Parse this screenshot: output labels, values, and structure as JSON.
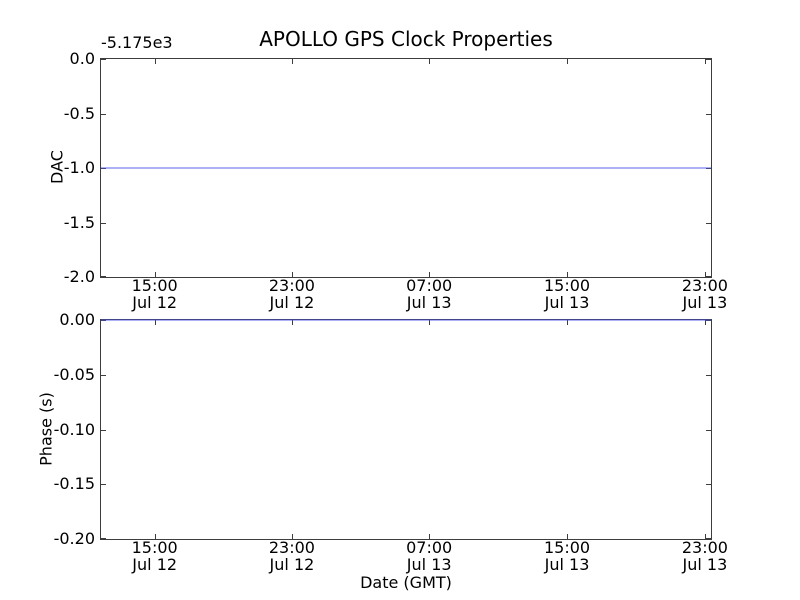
{
  "figure": {
    "title": "APOLLO GPS Clock Properties",
    "background": "#ffffff"
  },
  "chart_data": [
    {
      "type": "line",
      "panel": "dac",
      "title": "APOLLO GPS Clock Properties",
      "ylabel": "DAC",
      "offset_text": "-5.175e3",
      "ylim": [
        0.0,
        -2.0
      ],
      "grid": false,
      "yticks": [
        {
          "label": "0.0",
          "value": 0.0
        },
        {
          "label": "-0.5",
          "value": -0.5
        },
        {
          "label": "-1.0",
          "value": -1.0
        },
        {
          "label": "-1.5",
          "value": -1.5
        },
        {
          "label": "-2.0",
          "value": -2.0
        }
      ],
      "xticks": [
        {
          "label_time": "15:00",
          "label_date": "Jul 12",
          "frac": 0.088
        },
        {
          "label_time": "23:00",
          "label_date": "Jul 12",
          "frac": 0.313
        },
        {
          "label_time": "07:00",
          "label_date": "Jul 13",
          "frac": 0.538
        },
        {
          "label_time": "15:00",
          "label_date": "Jul 13",
          "frac": 0.764
        },
        {
          "label_time": "23:00",
          "label_date": "Jul 13",
          "frac": 0.99
        }
      ],
      "series": [
        {
          "name": "DAC",
          "shape": "constant-hline",
          "y": -1.0,
          "color": "#4650e6"
        }
      ]
    },
    {
      "type": "line",
      "panel": "phase",
      "ylabel": "Phase (s)",
      "xlabel": "Date (GMT)",
      "ylim": [
        0.0,
        -0.2
      ],
      "grid": false,
      "yticks": [
        {
          "label": "0.00",
          "value": 0.0
        },
        {
          "label": "-0.05",
          "value": -0.05
        },
        {
          "label": "-0.10",
          "value": -0.1
        },
        {
          "label": "-0.15",
          "value": -0.15
        },
        {
          "label": "-0.20",
          "value": -0.2
        }
      ],
      "xticks": [
        {
          "label_time": "15:00",
          "label_date": "Jul 12",
          "frac": 0.088
        },
        {
          "label_time": "23:00",
          "label_date": "Jul 12",
          "frac": 0.313
        },
        {
          "label_time": "07:00",
          "label_date": "Jul 13",
          "frac": 0.538
        },
        {
          "label_time": "15:00",
          "label_date": "Jul 13",
          "frac": 0.764
        },
        {
          "label_time": "23:00",
          "label_date": "Jul 13",
          "frac": 0.99
        }
      ],
      "series": [
        {
          "name": "Phase",
          "shape": "constant-hline",
          "y": 0.0,
          "color": "#4650e6"
        }
      ]
    }
  ]
}
